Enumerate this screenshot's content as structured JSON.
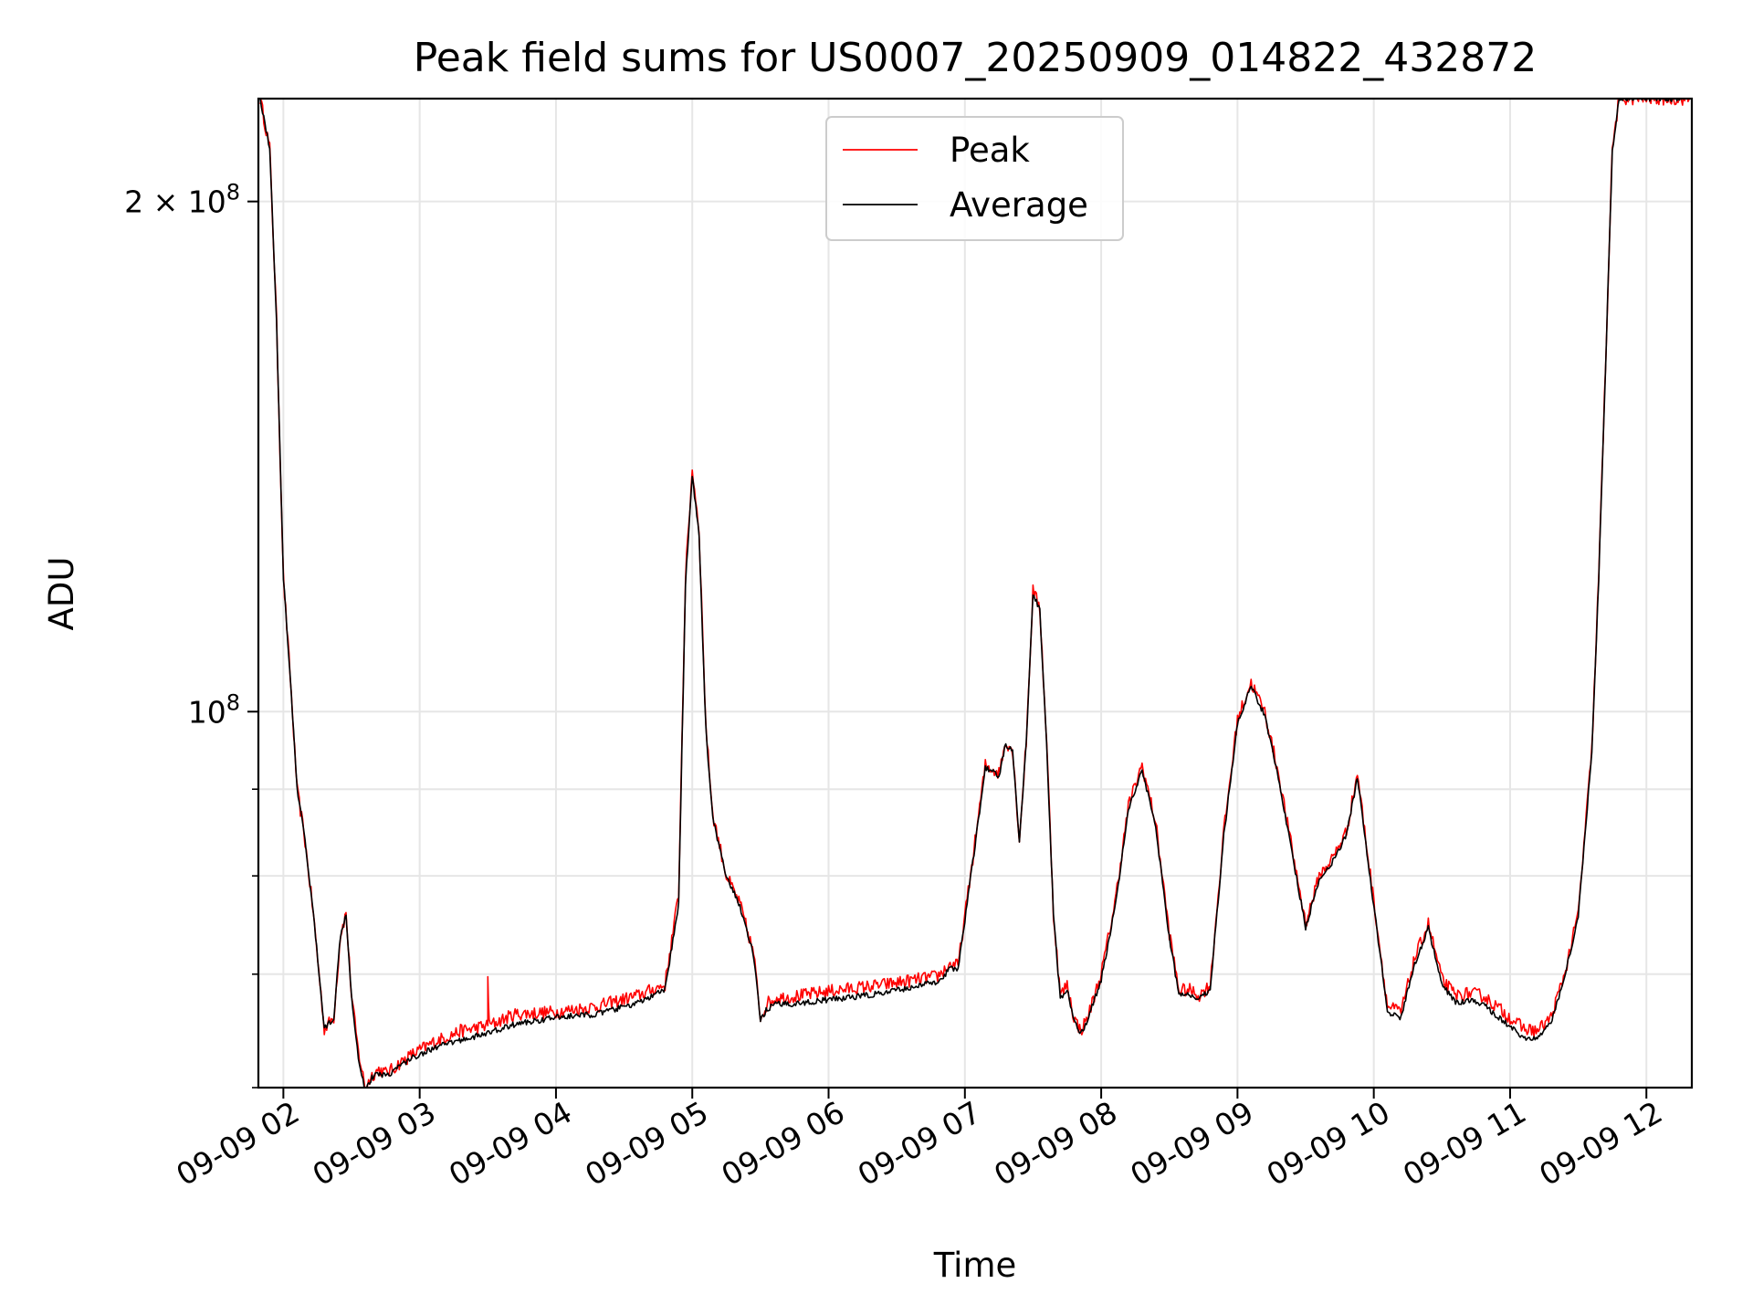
{
  "chart_data": {
    "type": "line",
    "title": "Peak field sums for US0007_20250909_014822_432872",
    "xlabel": "Time",
    "ylabel": "ADU",
    "y_scale": "log",
    "xlim": [
      "2025-09-09 01:49",
      "2025-09-09 12:20"
    ],
    "ylim": [
      60000000,
      230000000
    ],
    "grid": true,
    "legend_position": "top-center",
    "x_tick_labels": [
      "09-09 02",
      "09-09 03",
      "09-09 04",
      "09-09 05",
      "09-09 06",
      "09-09 07",
      "09-09 08",
      "09-09 09",
      "09-09 10",
      "09-09 11",
      "09-09 12"
    ],
    "x_tick_hours": [
      2,
      3,
      4,
      5,
      6,
      7,
      8,
      9,
      10,
      11,
      12
    ],
    "y_major_ticks": [
      {
        "value": 200000000,
        "mantissa": "2",
        "exponent": "8"
      },
      {
        "value": 100000000,
        "mantissa": "",
        "exponent": "8"
      }
    ],
    "y_minor_ticks": [
      60000000,
      70000000,
      80000000,
      90000000
    ],
    "x_unit": "hour of 2025-09-09",
    "series": [
      {
        "name": "Peak",
        "color": "#ff0000",
        "x": [
          1.83,
          1.9,
          1.95,
          2.0,
          2.05,
          2.1,
          2.15,
          2.22,
          2.3,
          2.37,
          2.42,
          2.46,
          2.5,
          2.55,
          2.6,
          2.65,
          2.7,
          2.75,
          2.8,
          2.85,
          2.95,
          3.1,
          3.3,
          3.5,
          3.5,
          3.51,
          3.7,
          4.0,
          4.3,
          4.6,
          4.8,
          4.9,
          4.95,
          5.0,
          5.05,
          5.1,
          5.15,
          5.25,
          5.35,
          5.45,
          5.5,
          5.55,
          5.62,
          5.65,
          5.8,
          6.0,
          6.4,
          6.8,
          6.9,
          6.95,
          7.05,
          7.15,
          7.25,
          7.3,
          7.35,
          7.4,
          7.45,
          7.5,
          7.55,
          7.6,
          7.65,
          7.7,
          7.75,
          7.8,
          7.85,
          7.9,
          8.0,
          8.1,
          8.2,
          8.3,
          8.4,
          8.5,
          8.57,
          8.65,
          8.72,
          8.8,
          8.9,
          9.0,
          9.1,
          9.2,
          9.3,
          9.4,
          9.5,
          9.6,
          9.7,
          9.8,
          9.88,
          9.95,
          10.05,
          10.1,
          10.2,
          10.3,
          10.4,
          10.5,
          10.6,
          10.7,
          10.8,
          10.9,
          11.0,
          11.1,
          11.2,
          11.3,
          11.4,
          11.5,
          11.6,
          11.65,
          11.7,
          11.75,
          11.8,
          11.85,
          11.9,
          11.95,
          12.0,
          12.05,
          12.1,
          12.15,
          12.2,
          12.33
        ],
        "y": [
          230000000,
          215000000,
          170000000,
          120000000,
          105000000,
          90000000,
          85000000,
          76000000,
          65000000,
          66000000,
          74000000,
          76000000,
          68000000,
          63000000,
          60000000,
          61000000,
          61500000,
          61200000,
          61500000,
          62000000,
          62800000,
          63800000,
          64800000,
          65300000,
          70000000,
          65300000,
          66300000,
          66500000,
          67000000,
          68000000,
          69000000,
          78000000,
          120000000,
          139000000,
          128000000,
          98000000,
          87000000,
          80000000,
          77000000,
          72000000,
          66000000,
          67300000,
          67800000,
          67800000,
          68000000,
          68400000,
          69000000,
          69800000,
          71000000,
          70800000,
          81000000,
          93000000,
          92000000,
          96000000,
          95000000,
          84000000,
          96000000,
          118000000,
          115000000,
          96000000,
          76000000,
          68000000,
          69000000,
          66000000,
          64800000,
          66000000,
          70000000,
          77000000,
          88000000,
          93000000,
          86000000,
          74000000,
          68500000,
          68500000,
          68000000,
          69000000,
          85000000,
          99000000,
          104000000,
          100000000,
          92000000,
          83000000,
          75000000,
          80000000,
          82000000,
          85000000,
          92000000,
          83000000,
          72000000,
          67000000,
          66500000,
          71500000,
          75000000,
          69500000,
          68000000,
          68200000,
          68000000,
          67000000,
          66000000,
          65000000,
          64800000,
          66000000,
          70000000,
          76000000,
          95000000,
          120000000,
          160000000,
          215000000,
          230000000,
          230000000,
          230000000,
          230000000,
          230000000,
          230000000,
          230000000,
          230000000,
          230000000,
          230000000
        ]
      },
      {
        "name": "Average",
        "color": "#000000",
        "x": [
          1.83,
          1.9,
          1.95,
          2.0,
          2.05,
          2.1,
          2.15,
          2.22,
          2.3,
          2.37,
          2.42,
          2.46,
          2.5,
          2.55,
          2.6,
          2.65,
          2.7,
          2.75,
          2.8,
          2.85,
          2.95,
          3.1,
          3.3,
          3.5,
          3.7,
          4.0,
          4.3,
          4.6,
          4.8,
          4.9,
          4.95,
          5.0,
          5.05,
          5.1,
          5.15,
          5.25,
          5.35,
          5.45,
          5.5,
          5.55,
          5.62,
          5.65,
          5.8,
          6.0,
          6.4,
          6.8,
          6.9,
          6.95,
          7.05,
          7.15,
          7.25,
          7.3,
          7.35,
          7.4,
          7.45,
          7.5,
          7.55,
          7.6,
          7.65,
          7.7,
          7.75,
          7.8,
          7.85,
          7.9,
          8.0,
          8.1,
          8.2,
          8.3,
          8.4,
          8.5,
          8.57,
          8.65,
          8.72,
          8.8,
          8.9,
          9.0,
          9.1,
          9.2,
          9.3,
          9.4,
          9.5,
          9.6,
          9.7,
          9.8,
          9.88,
          9.95,
          10.05,
          10.1,
          10.2,
          10.3,
          10.4,
          10.5,
          10.6,
          10.7,
          10.8,
          10.9,
          11.0,
          11.1,
          11.2,
          11.3,
          11.4,
          11.5,
          11.6,
          11.65,
          11.7,
          11.75,
          11.8,
          11.85,
          11.9,
          11.95,
          12.0,
          12.05,
          12.1,
          12.15,
          12.2,
          12.33
        ],
        "y": [
          230000000,
          215000000,
          170000000,
          120000000,
          105000000,
          90000000,
          85000000,
          76000000,
          65000000,
          66000000,
          74000000,
          76000000,
          68000000,
          62500000,
          59800000,
          60800000,
          61200000,
          61000000,
          61300000,
          61800000,
          62500000,
          63300000,
          64000000,
          64600000,
          65400000,
          66000000,
          66300000,
          67300000,
          68500000,
          77000000,
          119000000,
          138000000,
          127000000,
          97500000,
          86500000,
          79800000,
          76800000,
          71800000,
          65700000,
          66800000,
          67200000,
          67200000,
          67300000,
          67600000,
          68200000,
          69300000,
          70600000,
          70500000,
          80600000,
          92600000,
          91700000,
          95700000,
          94700000,
          83800000,
          95700000,
          117500000,
          114600000,
          95600000,
          75800000,
          67700000,
          68600000,
          65700000,
          64600000,
          65700000,
          69500000,
          76500000,
          87500000,
          92500000,
          85500000,
          73600000,
          68000000,
          68100000,
          67700000,
          68600000,
          84500000,
          98500000,
          103500000,
          99500000,
          91500000,
          82500000,
          74600000,
          79600000,
          81600000,
          84600000,
          91500000,
          82500000,
          71500000,
          66500000,
          66000000,
          71000000,
          74500000,
          69000000,
          67300000,
          67500000,
          67200000,
          66200000,
          65200000,
          64200000,
          64100000,
          65600000,
          69700000,
          75700000,
          94700000,
          119500000,
          159500000,
          214500000,
          230000000,
          230000000,
          230000000,
          230000000,
          230000000,
          230000000,
          230000000,
          230000000,
          230000000,
          230000000
        ]
      }
    ]
  }
}
